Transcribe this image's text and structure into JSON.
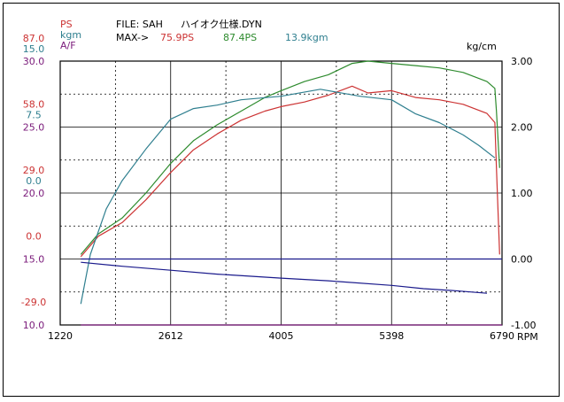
{
  "header": {
    "ps_label": "PS",
    "kgm_label": "kgm",
    "af_label": "A/F",
    "file_label": "FILE: SAH",
    "file_name": "ハイオク仕様.DYN",
    "max_label": "MAX->",
    "max_ps_red": "75.9PS",
    "max_ps_green": "87.4PS",
    "max_kgm": "13.9kgm",
    "right_unit": "kg/cm",
    "x_unit": "RPM"
  },
  "colors": {
    "red": "#cc3333",
    "green": "#2e8b2e",
    "teal": "#2f7f8f",
    "blue": "#1a1a8c",
    "purple": "#7a1a7a",
    "grid": "#000000"
  },
  "chart_data": {
    "type": "line",
    "x_ticks": [
      "1220",
      "2612",
      "4005",
      "5398",
      "6790"
    ],
    "xlim": [
      1220,
      6790
    ],
    "left_axis_ticks": [
      {
        "ps": "87.0",
        "kgm": "15.0",
        "af": "30.0"
      },
      {
        "ps": "58.0",
        "kgm": "7.5",
        "af": "25.0"
      },
      {
        "ps": "29.0",
        "kgm": "0.0",
        "af": "20.0"
      },
      {
        "ps": "0.0",
        "kgm": "",
        "af": "15.0"
      },
      {
        "ps": "-29.0",
        "kgm": "",
        "af": "10.0"
      }
    ],
    "right_axis_ticks": [
      "3.00",
      "2.00",
      "1.00",
      "0.00",
      "-1.00"
    ],
    "right_ylim": [
      -1,
      3
    ],
    "series": [
      {
        "name": "75.9PS",
        "color_key": "red",
        "axis": "ps",
        "ylim": [
          -29,
          87
        ],
        "x": [
          1480,
          1700,
          2000,
          2300,
          2612,
          2900,
          3200,
          3500,
          3800,
          4005,
          4300,
          4600,
          4900,
          5100,
          5398,
          5700,
          6000,
          6300,
          6600,
          6700,
          6720,
          6760
        ],
        "y": [
          1,
          10,
          16,
          26,
          38,
          48,
          55,
          61,
          65,
          67,
          69,
          72,
          76,
          73,
          74,
          71,
          70,
          68,
          64,
          60,
          40,
          2
        ]
      },
      {
        "name": "87.4PS",
        "color_key": "green",
        "axis": "ps",
        "ylim": [
          -29,
          87
        ],
        "x": [
          1480,
          1700,
          2000,
          2300,
          2612,
          2900,
          3200,
          3500,
          3800,
          4005,
          4300,
          4600,
          4900,
          5100,
          5398,
          5700,
          6000,
          6300,
          6600,
          6700,
          6720,
          6760
        ],
        "y": [
          2,
          11,
          18,
          29,
          42,
          52,
          59,
          65,
          71,
          74,
          78,
          81,
          86,
          87,
          86,
          85,
          84,
          82,
          78,
          75,
          65,
          40
        ]
      },
      {
        "name": "13.9kgm",
        "color_key": "teal",
        "axis": "kgm",
        "ylim": [
          0,
          15
        ],
        "x": [
          1480,
          1600,
          1800,
          2000,
          2300,
          2612,
          2900,
          3200,
          3500,
          4005,
          4500,
          5000,
          5398,
          5700,
          6000,
          6300,
          6500,
          6700
        ],
        "y": [
          1.2,
          4.0,
          6.6,
          8.2,
          10.0,
          11.7,
          12.3,
          12.5,
          12.8,
          13.0,
          13.4,
          13.0,
          12.8,
          12.0,
          11.5,
          10.8,
          10.2,
          9.5
        ]
      },
      {
        "name": "kg/cm",
        "color_key": "blue",
        "axis": "right",
        "ylim": [
          -1,
          3
        ],
        "x": [
          1480,
          2000,
          2612,
          3200,
          4005,
          4600,
          5398,
          5800,
          6200,
          6600
        ],
        "y": [
          -0.05,
          -0.11,
          -0.17,
          -0.23,
          -0.29,
          -0.33,
          -0.4,
          -0.45,
          -0.48,
          -0.52
        ]
      },
      {
        "name": "",
        "color_key": "blue",
        "axis": "right",
        "ylim": [
          -1,
          3
        ],
        "x": [
          1480,
          2612,
          4005,
          5398,
          6790
        ],
        "y": [
          0.0,
          0.0,
          0.0,
          0.0,
          0.0
        ]
      },
      {
        "name": "",
        "color_key": "purple",
        "axis": "af",
        "ylim": [
          10,
          30
        ],
        "x": [
          1480,
          2612,
          4005,
          5398,
          6790
        ],
        "y": [
          10.0,
          10.0,
          10.0,
          10.0,
          10.0
        ]
      }
    ]
  }
}
